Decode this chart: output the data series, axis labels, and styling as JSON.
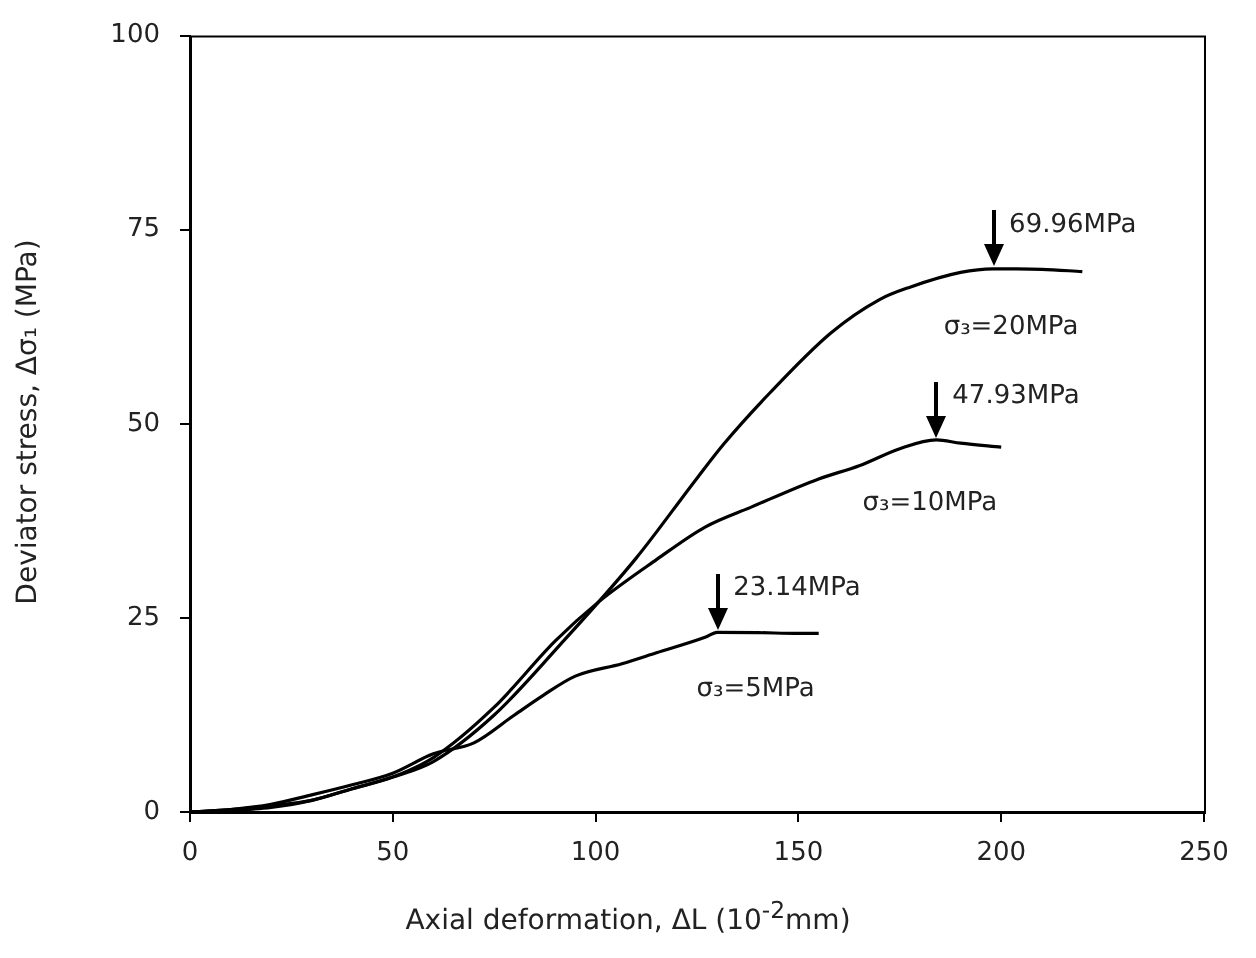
{
  "chart_data": {
    "type": "line",
    "xlabel": "Axial deformation, ΔL (10$^{-2}$mm)",
    "ylabel": "Deviator stress, Δσ₁ (MPa)",
    "xlim": [
      0,
      250
    ],
    "xticks": [
      0,
      50,
      100,
      150,
      200,
      250
    ],
    "ylim": [
      0,
      100
    ],
    "yticks": [
      0,
      25,
      50,
      75,
      100
    ],
    "grid": false,
    "legend": false,
    "marker": "none",
    "line_style": "solid",
    "series": [
      {
        "name": "σ₃=20MPa",
        "color": "#000000",
        "x": [
          0,
          10,
          20,
          30,
          40,
          50,
          60,
          75,
          91,
          110,
          125,
          131.6,
          143,
          158,
          170,
          177.5,
          190,
          198,
          210,
          220
        ],
        "values": [
          0,
          0.3,
          0.8,
          1.5,
          3,
          4.5,
          6.5,
          12.5,
          21.4,
          32.7,
          43,
          47.4,
          54,
          61.7,
          66,
          67.6,
          69.5,
          69.96,
          69.9,
          69.6
        ]
      },
      {
        "name": "σ₃=10MPa",
        "color": "#000000",
        "x": [
          0,
          10,
          20,
          30,
          40,
          50,
          60,
          75,
          90,
          100.6,
          115,
          127,
          138.5,
          155,
          165,
          175,
          184,
          190,
          200
        ],
        "values": [
          0,
          0.2,
          0.6,
          1.5,
          3,
          4.5,
          7,
          13.5,
          22,
          27,
          32.5,
          36.7,
          39.3,
          42.9,
          44.6,
          46.8,
          47.93,
          47.5,
          47
        ]
      },
      {
        "name": "σ₃=5MPa",
        "color": "#000000",
        "x": [
          0,
          10,
          20,
          30,
          40,
          50,
          60,
          70,
          80,
          87,
          95,
          106.5,
          115,
          127,
          130,
          140,
          150,
          155
        ],
        "values": [
          0,
          0.3,
          1,
          2.2,
          3.5,
          5,
          7.5,
          8.9,
          12.5,
          15,
          17.5,
          19.1,
          20.5,
          22.5,
          23.14,
          23.1,
          23,
          23
        ]
      }
    ],
    "annotations": [
      {
        "text": "69.96MPa",
        "x": 198,
        "y": 69.96
      },
      {
        "text": "47.93MPa",
        "x": 184,
        "y": 47.93
      },
      {
        "text": "23.14MPa",
        "x": 130,
        "y": 23.14
      }
    ]
  }
}
